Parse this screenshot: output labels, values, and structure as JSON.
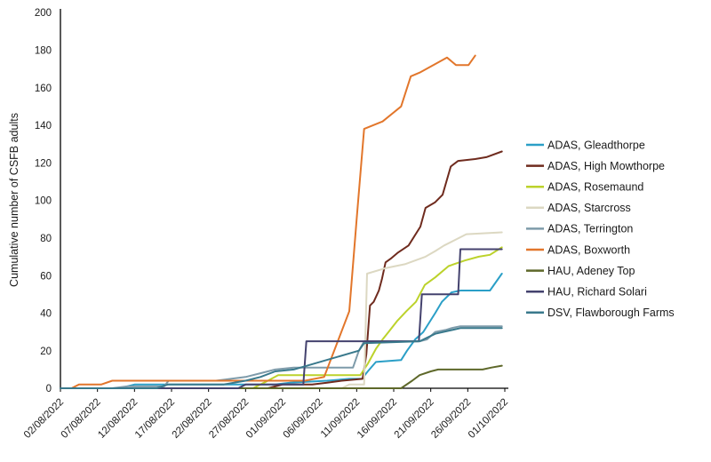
{
  "chart_data": {
    "type": "line",
    "title": "",
    "xlabel": "",
    "ylabel": "Cumulative number of CSFB adults",
    "ylim": [
      0,
      200
    ],
    "ytick_step": 20,
    "ytick_labels": [
      "0",
      "20",
      "40",
      "60",
      "80",
      "100",
      "120",
      "140",
      "160",
      "180",
      "200"
    ],
    "x_tick_labels": [
      "02/08/2022",
      "07/08/2022",
      "12/08/2022",
      "17/08/2022",
      "22/08/2022",
      "27/08/2022",
      "01/09/2022",
      "06/09/2022",
      "11/09/2022",
      "16/09/2022",
      "21/09/2022",
      "26/09/2022",
      "01/10/2022"
    ],
    "x_tick_days": [
      0,
      5,
      10,
      15,
      20,
      25,
      30,
      35,
      40,
      45,
      50,
      55,
      60
    ],
    "x_range_days": [
      0,
      60
    ],
    "grid": false,
    "legend_position": "right",
    "axis_color": "#000000",
    "series": [
      {
        "name": "ADAS, Gleadthorpe",
        "color": "#2b9fc7",
        "points": [
          [
            0,
            0
          ],
          [
            8,
            0
          ],
          [
            10,
            2
          ],
          [
            29,
            2
          ],
          [
            31,
            3
          ],
          [
            36,
            4
          ],
          [
            39,
            5
          ],
          [
            40.7,
            5
          ],
          [
            41.5,
            9
          ],
          [
            42.6,
            14
          ],
          [
            46,
            15
          ],
          [
            46.8,
            20
          ],
          [
            47.9,
            26
          ],
          [
            49,
            30
          ],
          [
            50.6,
            40
          ],
          [
            51.5,
            46
          ],
          [
            52.8,
            51
          ],
          [
            54,
            52
          ],
          [
            58,
            52
          ],
          [
            59.6,
            61
          ]
        ]
      },
      {
        "name": "ADAS, High Mowthorpe",
        "color": "#6f2b1e",
        "points": [
          [
            0,
            0
          ],
          [
            28,
            0
          ],
          [
            29,
            1
          ],
          [
            30,
            2
          ],
          [
            34,
            2
          ],
          [
            36,
            3
          ],
          [
            38,
            4
          ],
          [
            40.8,
            5
          ],
          [
            41.3,
            18
          ],
          [
            41.8,
            44
          ],
          [
            42.3,
            46
          ],
          [
            43,
            52
          ],
          [
            43.4,
            58
          ],
          [
            43.9,
            67
          ],
          [
            44.6,
            69
          ],
          [
            45.5,
            72
          ],
          [
            47,
            76
          ],
          [
            48.6,
            86
          ],
          [
            49.3,
            96
          ],
          [
            50.6,
            99
          ],
          [
            51.6,
            103
          ],
          [
            52.7,
            118
          ],
          [
            53.7,
            121
          ],
          [
            56,
            122
          ],
          [
            57.5,
            123
          ],
          [
            59.6,
            126
          ]
        ]
      },
      {
        "name": "ADAS, Rosemaund",
        "color": "#bcd22b",
        "points": [
          [
            0,
            0
          ],
          [
            26,
            0
          ],
          [
            27.5,
            3
          ],
          [
            29.4,
            7
          ],
          [
            40.5,
            7
          ],
          [
            41.5,
            13
          ],
          [
            42.6,
            21
          ],
          [
            43.5,
            26
          ],
          [
            44.3,
            30
          ],
          [
            45.5,
            36
          ],
          [
            46.7,
            41
          ],
          [
            48,
            46
          ],
          [
            49.2,
            55
          ],
          [
            50.6,
            59
          ],
          [
            52.4,
            65
          ],
          [
            54.6,
            68
          ],
          [
            56.5,
            70
          ],
          [
            58,
            71
          ],
          [
            59.6,
            75
          ]
        ]
      },
      {
        "name": "ADAS, Starcross",
        "color": "#dcd8c2",
        "points": [
          [
            0,
            0
          ],
          [
            38,
            0
          ],
          [
            39,
            2
          ],
          [
            41,
            2
          ],
          [
            41.4,
            61
          ],
          [
            44,
            64
          ],
          [
            46.5,
            66
          ],
          [
            49.3,
            70
          ],
          [
            50.6,
            73
          ],
          [
            51.8,
            76
          ],
          [
            54.8,
            82
          ],
          [
            59.6,
            83
          ]
        ]
      },
      {
        "name": "ADAS, Terrington",
        "color": "#7e9baa",
        "points": [
          [
            0,
            0
          ],
          [
            7,
            0
          ],
          [
            9,
            1
          ],
          [
            14,
            1
          ],
          [
            14.6,
            4
          ],
          [
            21,
            4
          ],
          [
            23,
            5
          ],
          [
            25,
            6
          ],
          [
            27,
            8
          ],
          [
            29,
            10
          ],
          [
            31.5,
            11
          ],
          [
            39.5,
            11
          ],
          [
            40.3,
            20
          ],
          [
            41,
            25
          ],
          [
            48.5,
            25
          ],
          [
            49.5,
            26
          ],
          [
            50.6,
            30
          ],
          [
            52,
            31
          ],
          [
            52.8,
            32
          ],
          [
            54,
            33
          ],
          [
            59.6,
            33
          ]
        ]
      },
      {
        "name": "ADAS, Boxworth",
        "color": "#e2762b",
        "points": [
          [
            0,
            0
          ],
          [
            1.5,
            0
          ],
          [
            2.5,
            2
          ],
          [
            5.5,
            2
          ],
          [
            7,
            4
          ],
          [
            33,
            4
          ],
          [
            35.6,
            6
          ],
          [
            39,
            41
          ],
          [
            40,
            90
          ],
          [
            41,
            138
          ],
          [
            43.5,
            142
          ],
          [
            46,
            150
          ],
          [
            47.3,
            166
          ],
          [
            48.5,
            168
          ],
          [
            52.2,
            176
          ],
          [
            53.4,
            172
          ],
          [
            55.1,
            172
          ],
          [
            56,
            177
          ]
        ]
      },
      {
        "name": "HAU, Adeney Top",
        "color": "#5e682a",
        "points": [
          [
            0,
            0
          ],
          [
            46,
            0
          ],
          [
            47.5,
            4
          ],
          [
            48.5,
            7
          ],
          [
            50,
            9
          ],
          [
            51,
            10
          ],
          [
            57,
            10
          ],
          [
            58.2,
            11
          ],
          [
            59.6,
            12
          ]
        ]
      },
      {
        "name": "HAU, Richard Solari",
        "color": "#44426e",
        "points": [
          [
            0,
            0
          ],
          [
            24,
            0
          ],
          [
            25,
            2
          ],
          [
            32.8,
            2
          ],
          [
            33.2,
            25
          ],
          [
            48.4,
            25
          ],
          [
            48.8,
            50
          ],
          [
            53.7,
            50
          ],
          [
            54,
            74
          ],
          [
            59.6,
            74
          ]
        ]
      },
      {
        "name": "DSV, Flawborough Farms",
        "color": "#39798c",
        "points": [
          [
            0,
            0
          ],
          [
            13,
            0
          ],
          [
            14.5,
            2
          ],
          [
            22,
            2
          ],
          [
            25,
            4
          ],
          [
            27,
            6
          ],
          [
            29,
            9
          ],
          [
            31.5,
            10
          ],
          [
            40.3,
            20
          ],
          [
            41,
            24
          ],
          [
            48.5,
            25
          ],
          [
            50.6,
            29
          ],
          [
            54,
            32
          ],
          [
            59.6,
            32
          ]
        ]
      }
    ]
  }
}
